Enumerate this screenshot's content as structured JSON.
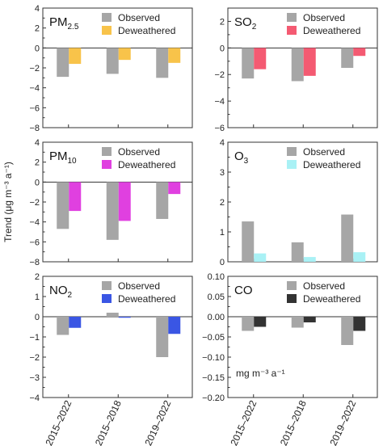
{
  "figure": {
    "ylabel": "Trend (μg m⁻³ a⁻¹)",
    "categories": [
      "2015–2022",
      "2015–2018",
      "2019–2022"
    ],
    "observed_color": "#a6a6a6"
  },
  "chart_data": [
    {
      "type": "bar",
      "panel": "PM2.5",
      "label_main": "PM",
      "label_sub": "2.5",
      "categories": [
        "2015–2022",
        "2015–2018",
        "2019–2022"
      ],
      "ylim": [
        -8,
        4
      ],
      "yticks": [
        -8,
        -6,
        -4,
        -2,
        0,
        2,
        4
      ],
      "legend": "top-right",
      "series": [
        {
          "name": "Observed",
          "color": "#a6a6a6",
          "values": [
            -2.9,
            -2.6,
            -3.0
          ]
        },
        {
          "name": "Deweathered",
          "color": "#f8c34a",
          "values": [
            -1.6,
            -1.2,
            -1.5
          ]
        }
      ]
    },
    {
      "type": "bar",
      "panel": "SO2",
      "label_main": "SO",
      "label_sub": "2",
      "categories": [
        "2015–2022",
        "2015–2018",
        "2019–2022"
      ],
      "ylim": [
        -6,
        3
      ],
      "yticks": [
        -6,
        -4,
        -2,
        0,
        2
      ],
      "legend": "top-right",
      "series": [
        {
          "name": "Observed",
          "color": "#a6a6a6",
          "values": [
            -2.3,
            -2.5,
            -1.5
          ]
        },
        {
          "name": "Deweathered",
          "color": "#f45a72",
          "values": [
            -1.6,
            -2.1,
            -0.6
          ]
        }
      ]
    },
    {
      "type": "bar",
      "panel": "PM10",
      "label_main": "PM",
      "label_sub": "10",
      "categories": [
        "2015–2022",
        "2015–2018",
        "2019–2022"
      ],
      "ylim": [
        -8,
        4
      ],
      "yticks": [
        -8,
        -6,
        -4,
        -2,
        0,
        2,
        4
      ],
      "legend": "top-right",
      "series": [
        {
          "name": "Observed",
          "color": "#a6a6a6",
          "values": [
            -4.7,
            -5.8,
            -3.7
          ]
        },
        {
          "name": "Deweathered",
          "color": "#e040e0",
          "values": [
            -2.9,
            -3.9,
            -1.2
          ]
        }
      ]
    },
    {
      "type": "bar",
      "panel": "O3",
      "label_main": "O",
      "label_sub": "3",
      "categories": [
        "2015–2022",
        "2015–2018",
        "2019–2022"
      ],
      "ylim": [
        0,
        4
      ],
      "yticks": [
        0,
        1,
        2,
        3,
        4
      ],
      "legend": "top-right",
      "series": [
        {
          "name": "Observed",
          "color": "#a6a6a6",
          "values": [
            1.35,
            0.65,
            1.58
          ]
        },
        {
          "name": "Deweathered",
          "color": "#a9f1f5",
          "values": [
            0.28,
            0.16,
            0.32
          ]
        }
      ]
    },
    {
      "type": "bar",
      "panel": "NO2",
      "label_main": "NO",
      "label_sub": "2",
      "categories": [
        "2015–2022",
        "2015–2018",
        "2019–2022"
      ],
      "ylim": [
        -4,
        2
      ],
      "yticks": [
        -4,
        -3,
        -2,
        -1,
        0,
        1,
        2
      ],
      "legend": "top-right",
      "series": [
        {
          "name": "Observed",
          "color": "#a6a6a6",
          "values": [
            -0.9,
            0.2,
            -2.0
          ]
        },
        {
          "name": "Deweathered",
          "color": "#3a56e4",
          "values": [
            -0.55,
            -0.05,
            -0.85
          ]
        }
      ]
    },
    {
      "type": "bar",
      "panel": "CO",
      "label_main": "CO",
      "label_sub": "",
      "unit": "mg m⁻³ a⁻¹",
      "categories": [
        "2015–2022",
        "2015–2018",
        "2019–2022"
      ],
      "ylim": [
        -0.2,
        0.1
      ],
      "yticks": [
        -0.2,
        -0.15,
        -0.1,
        -0.05,
        0.0,
        0.05,
        0.1
      ],
      "tick_decimals": 2,
      "legend": "top-right",
      "series": [
        {
          "name": "Observed",
          "color": "#a6a6a6",
          "values": [
            -0.035,
            -0.027,
            -0.07
          ]
        },
        {
          "name": "Deweathered",
          "color": "#333333",
          "values": [
            -0.025,
            -0.014,
            -0.035
          ]
        }
      ]
    }
  ]
}
